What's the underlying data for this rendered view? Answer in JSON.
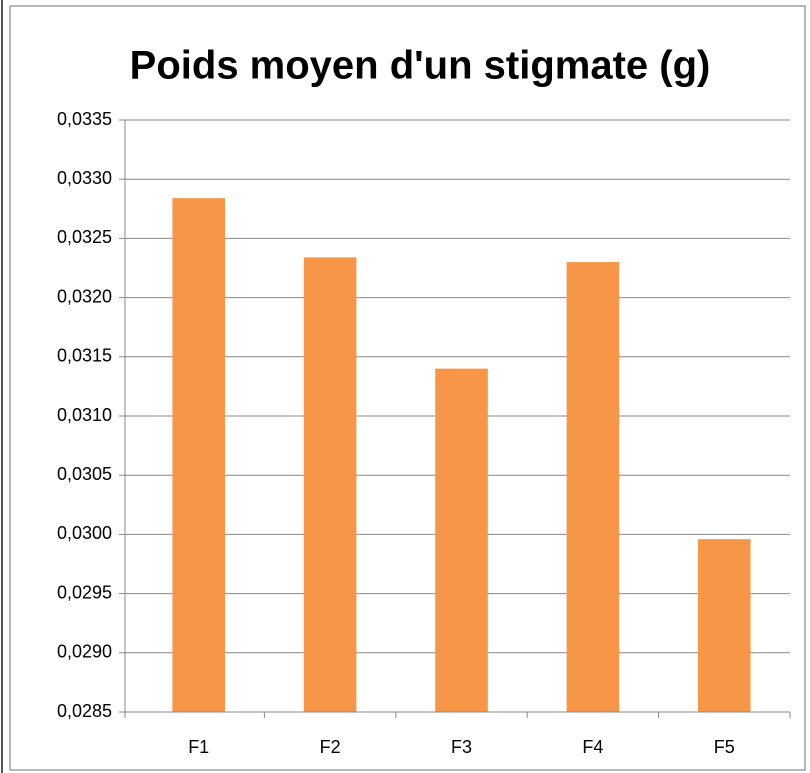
{
  "chart_data": {
    "type": "bar",
    "title": "Poids moyen d'un stigmate (g)",
    "categories": [
      "F1",
      "F2",
      "F3",
      "F4",
      "F5"
    ],
    "values": [
      0.03284,
      0.03234,
      0.0314,
      0.0323,
      0.02996
    ],
    "color": "#f79646",
    "ylim": [
      0.0285,
      0.0335
    ],
    "yticks": [
      {
        "value": 0.0285,
        "label": "0,0285"
      },
      {
        "value": 0.029,
        "label": "0,0290"
      },
      {
        "value": 0.0295,
        "label": "0,0295"
      },
      {
        "value": 0.03,
        "label": "0,0300"
      },
      {
        "value": 0.0305,
        "label": "0,0305"
      },
      {
        "value": 0.031,
        "label": "0,0310"
      },
      {
        "value": 0.0315,
        "label": "0,0315"
      },
      {
        "value": 0.032,
        "label": "0,0320"
      },
      {
        "value": 0.0325,
        "label": "0,0325"
      },
      {
        "value": 0.033,
        "label": "0,0330"
      },
      {
        "value": 0.0335,
        "label": "0,0335"
      }
    ],
    "grid": true
  }
}
